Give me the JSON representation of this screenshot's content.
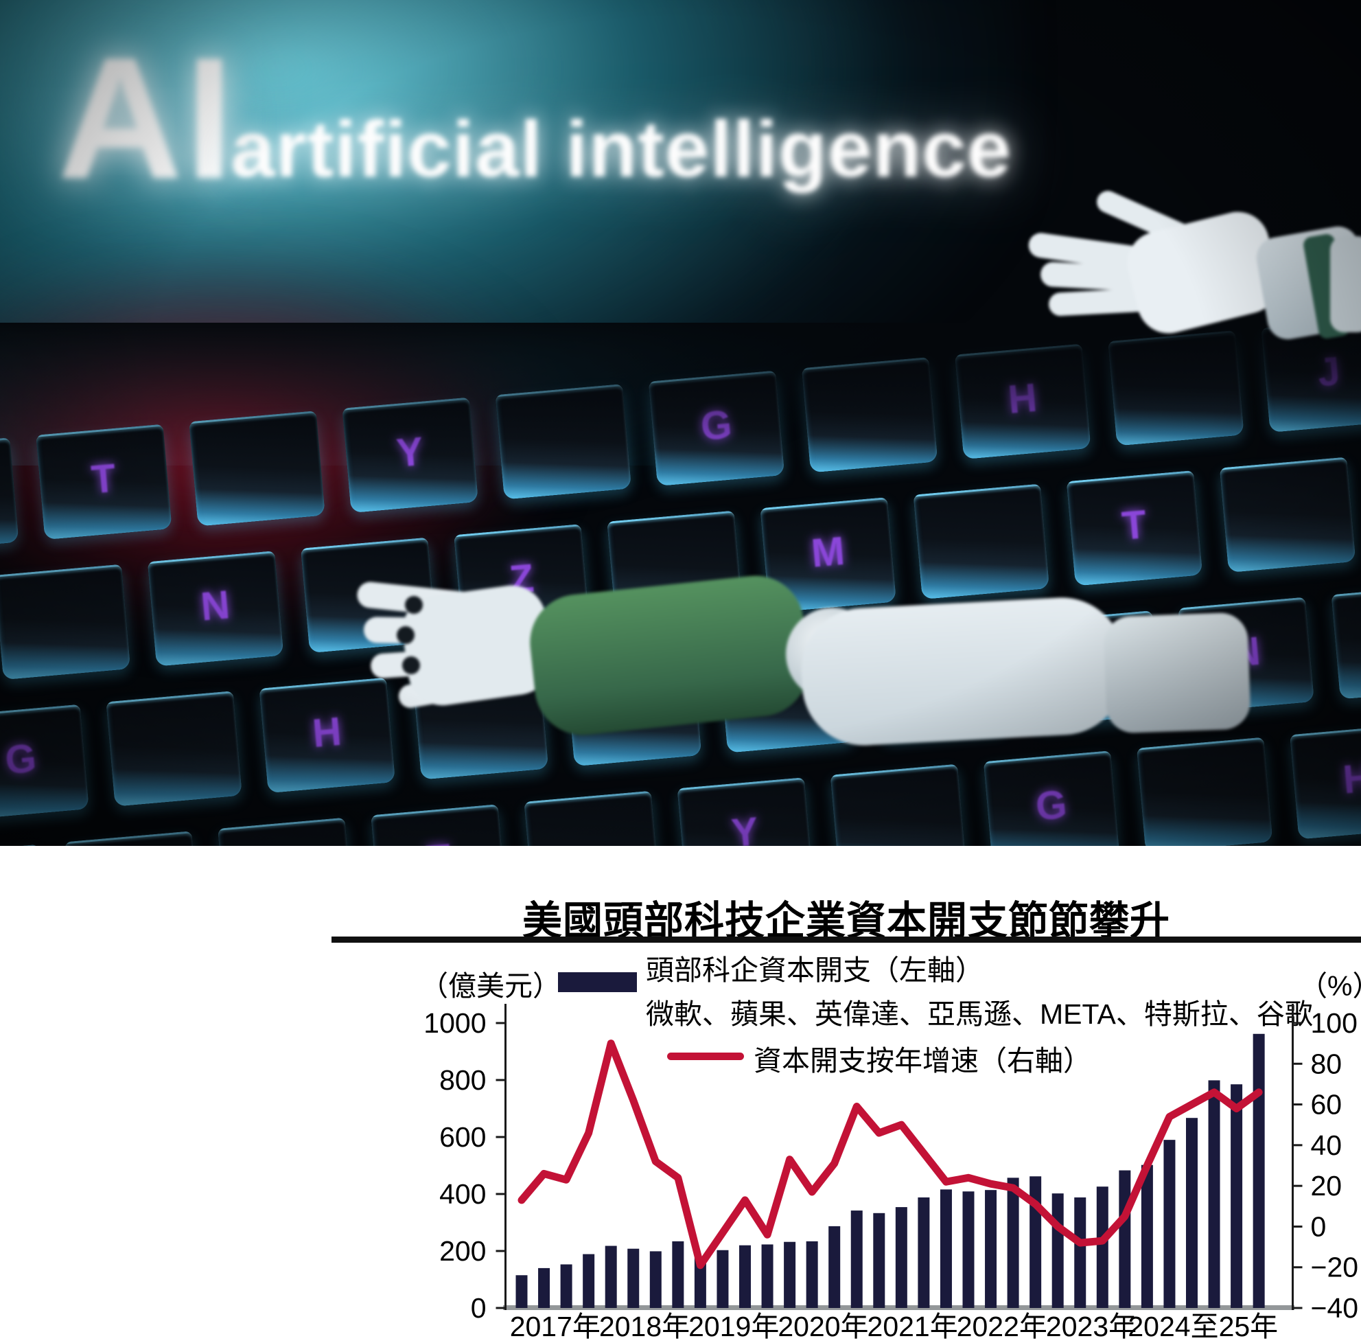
{
  "photo": {
    "headline_ai": "AI",
    "headline_rest": "artificial intelligence",
    "keyboard_keys": [
      "T",
      "Y",
      "G",
      "H",
      "J",
      "B",
      "N",
      "Z",
      "M"
    ]
  },
  "chart": {
    "title": "美國頭部科技企業資本開支節節攀升",
    "left_axis_unit": "（億美元）",
    "right_axis_unit": "（%）",
    "legend_bars_label": "頭部科企資本開支（左軸）",
    "legend_bars_sublabel": "微軟、蘋果、英偉達、亞馬遜、META、特斯拉、谷歌",
    "legend_line_label": "資本開支按年增速（右軸）",
    "colors": {
      "bar": "#1a1a3c",
      "line": "#c31236",
      "baseline": "#939799",
      "axis": "#1a1a1a"
    }
  },
  "chart_data": {
    "type": "bar+line combo, quarterly",
    "x_group_labels": [
      "2017年",
      "2018年",
      "2019年",
      "2020年",
      "2021年",
      "2022年",
      "2023年",
      "2024至25年"
    ],
    "x_group_quarter_counts": [
      4,
      4,
      4,
      4,
      4,
      4,
      4,
      6
    ],
    "left_axis_ticks": [
      0,
      200,
      400,
      600,
      800,
      1000
    ],
    "right_axis_ticks": [
      -40,
      -20,
      0,
      20,
      40,
      60,
      80,
      100
    ],
    "left_ylim": [
      0,
      1000
    ],
    "right_ylim": [
      -40,
      100
    ],
    "grid": false,
    "legend_position": "top-inside",
    "series": [
      {
        "name": "頭部科企資本開支（左軸）",
        "type": "bar",
        "axis": "left",
        "values": [
          115,
          140,
          153,
          189,
          218,
          208,
          199,
          234,
          177,
          203,
          220,
          223,
          232,
          234,
          287,
          342,
          333,
          354,
          388,
          416,
          409,
          414,
          457,
          462,
          402,
          388,
          426,
          483,
          502,
          590,
          667,
          799,
          785,
          962
        ]
      },
      {
        "name": "資本開支按年增速（右軸）",
        "type": "line",
        "axis": "right",
        "values": [
          13,
          26,
          23,
          46,
          90,
          62,
          32,
          24,
          -19,
          -3,
          13,
          -4,
          33,
          17,
          31,
          59,
          46,
          50,
          36,
          22,
          24,
          21,
          19,
          11,
          0,
          -8,
          -7,
          5,
          30,
          54,
          60,
          66,
          58,
          66
        ]
      }
    ]
  }
}
